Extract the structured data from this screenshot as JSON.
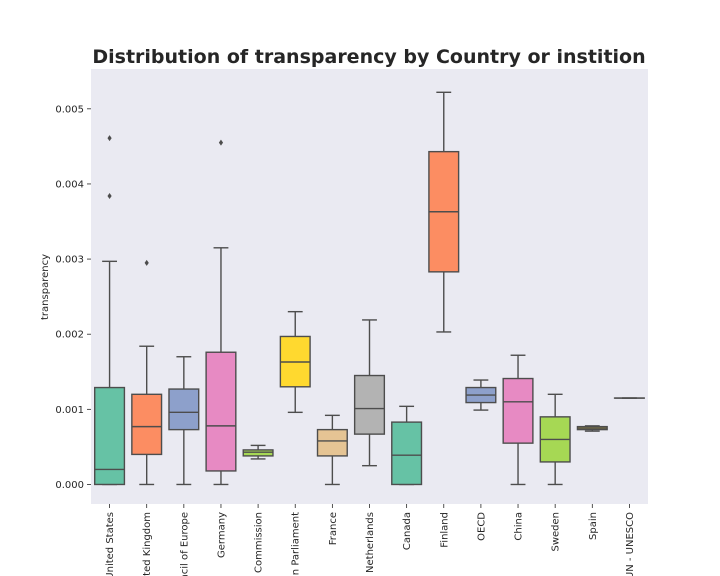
{
  "chart_data": {
    "type": "box",
    "title": "Distribution of transparency by Country or instition",
    "xlabel": "",
    "ylabel": "transparency",
    "ylim": [
      -0.00026,
      0.00553
    ],
    "yticks": [
      0.0,
      0.001,
      0.002,
      0.003,
      0.004,
      0.005
    ],
    "ytick_labels": [
      "0.000",
      "0.001",
      "0.002",
      "0.003",
      "0.004",
      "0.005"
    ],
    "grid": false,
    "background": "#eaeaf2",
    "categories": [
      "United States",
      "United Kingdom",
      "Council of Europe",
      "Germany",
      "European Commission",
      "European Parliament",
      "France",
      "Netherlands",
      "Canada",
      "Finland",
      "OECD",
      "China",
      "Sweden",
      "Spain",
      "UN - UNESCO"
    ],
    "tick_labels": [
      "United States",
      "ted Kingdom",
      "ncil of Europe",
      "Germany",
      "Commission",
      "n Parliament",
      "France",
      "Netherlands",
      "Canada",
      "Finland",
      "OECD",
      "China",
      "Sweden",
      "Spain",
      "UN - UNESCO"
    ],
    "colors": [
      "#66c2a5",
      "#fc8d62",
      "#8da0cb",
      "#e78ac3",
      "#a6d854",
      "#ffd92f",
      "#e5c494",
      "#b3b3b3",
      "#66c2a5",
      "#fc8d62",
      "#8da0cb",
      "#e78ac3",
      "#a6d854",
      "#ffd92f",
      "#e5c494"
    ],
    "boxes": [
      {
        "whislo": 0.0,
        "q1": 0.0,
        "med": 0.0002,
        "q3": 0.00129,
        "whishi": 0.00297,
        "fliers": [
          0.00384,
          0.00461
        ]
      },
      {
        "whislo": 0.0,
        "q1": 0.0004,
        "med": 0.00077,
        "q3": 0.0012,
        "whishi": 0.00184,
        "fliers": [
          0.00295
        ]
      },
      {
        "whislo": 0.0,
        "q1": 0.00073,
        "med": 0.00096,
        "q3": 0.00127,
        "whishi": 0.0017,
        "fliers": []
      },
      {
        "whislo": 0.0,
        "q1": 0.00018,
        "med": 0.00078,
        "q3": 0.00176,
        "whishi": 0.00315,
        "fliers": [
          0.00455
        ]
      },
      {
        "whislo": 0.00034,
        "q1": 0.00038,
        "med": 0.00043,
        "q3": 0.00046,
        "whishi": 0.00052,
        "fliers": []
      },
      {
        "whislo": 0.00096,
        "q1": 0.0013,
        "med": 0.00163,
        "q3": 0.00197,
        "whishi": 0.0023,
        "fliers": []
      },
      {
        "whislo": 0.0,
        "q1": 0.00038,
        "med": 0.00058,
        "q3": 0.00073,
        "whishi": 0.00092,
        "fliers": []
      },
      {
        "whislo": 0.00025,
        "q1": 0.00067,
        "med": 0.00101,
        "q3": 0.00145,
        "whishi": 0.00219,
        "fliers": []
      },
      {
        "whislo": 0.0,
        "q1": 0.0,
        "med": 0.00039,
        "q3": 0.00083,
        "whishi": 0.00104,
        "fliers": []
      },
      {
        "whislo": 0.00203,
        "q1": 0.00283,
        "med": 0.00363,
        "q3": 0.00443,
        "whishi": 0.00522,
        "fliers": []
      },
      {
        "whislo": 0.00099,
        "q1": 0.00109,
        "med": 0.00119,
        "q3": 0.00129,
        "whishi": 0.00139,
        "fliers": []
      },
      {
        "whislo": 0.0,
        "q1": 0.00055,
        "med": 0.0011,
        "q3": 0.00141,
        "whishi": 0.00172,
        "fliers": []
      },
      {
        "whislo": 0.0,
        "q1": 0.0003,
        "med": 0.0006,
        "q3": 0.0009,
        "whishi": 0.0012,
        "fliers": []
      },
      {
        "whislo": 0.00071,
        "q1": 0.00073,
        "med": 0.00075,
        "q3": 0.00077,
        "whishi": 0.00078,
        "fliers": []
      },
      {
        "whislo": 0.00115,
        "q1": 0.00115,
        "med": 0.00115,
        "q3": 0.00115,
        "whishi": 0.00115,
        "fliers": []
      }
    ]
  }
}
